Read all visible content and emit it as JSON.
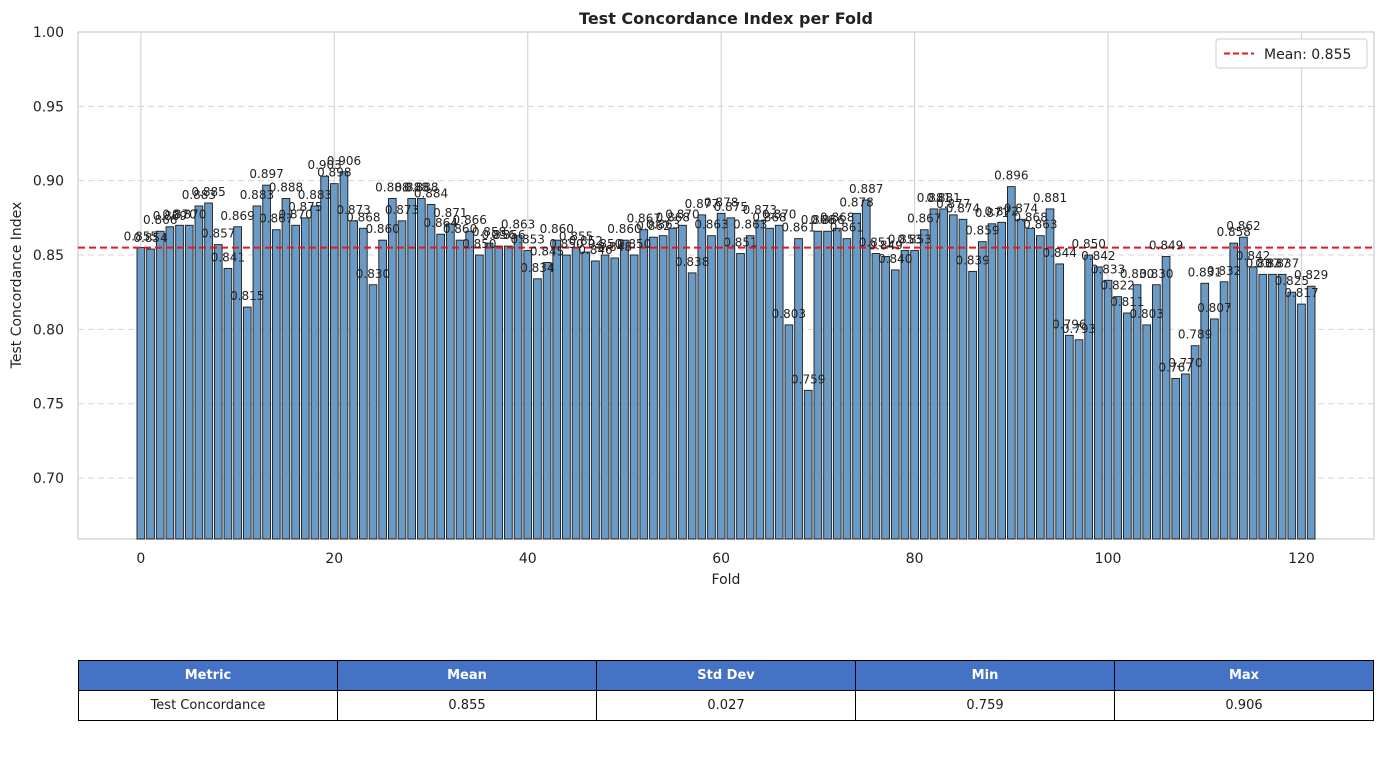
{
  "chart_data": {
    "type": "bar",
    "title": "Test Concordance Index per Fold",
    "xlabel": "Fold",
    "ylabel": "Test Concordance Index",
    "xlim": [
      -6.5,
      127.5
    ],
    "ylim": [
      0.659,
      1.0
    ],
    "x_ticks": [
      0,
      20,
      40,
      60,
      80,
      100,
      120
    ],
    "y_ticks": [
      0.7,
      0.75,
      0.8,
      0.85,
      0.9,
      0.95,
      1.0
    ],
    "grid": true,
    "bar_color": "#6a9bc7",
    "bar_edge_color": "#1a1a1a",
    "mean_line": {
      "value": 0.855,
      "color": "#e41a1c",
      "label": "Mean: 0.855"
    },
    "legend_position": "top-right",
    "x": [
      0,
      1,
      2,
      3,
      4,
      5,
      6,
      7,
      8,
      9,
      10,
      11,
      12,
      13,
      14,
      15,
      16,
      17,
      18,
      19,
      20,
      21,
      22,
      23,
      24,
      25,
      26,
      27,
      28,
      29,
      30,
      31,
      32,
      33,
      34,
      35,
      36,
      37,
      38,
      39,
      40,
      41,
      42,
      43,
      44,
      45,
      46,
      47,
      48,
      49,
      50,
      51,
      52,
      53,
      54,
      55,
      56,
      57,
      58,
      59,
      60,
      61,
      62,
      63,
      64,
      65,
      66,
      67,
      68,
      69,
      70,
      71,
      72,
      73,
      74,
      75,
      76,
      77,
      78,
      79,
      80,
      81,
      82,
      83,
      84,
      85,
      86,
      87,
      88,
      89,
      90,
      91,
      92,
      93,
      94,
      95,
      96,
      97,
      98,
      99,
      100,
      101,
      102,
      103,
      104,
      105,
      106,
      107,
      108,
      109,
      110,
      111,
      112,
      113,
      114,
      115,
      116,
      117,
      118,
      119,
      120,
      121
    ],
    "values": [
      0.855,
      0.854,
      0.866,
      0.869,
      0.87,
      0.87,
      0.883,
      0.885,
      0.857,
      0.841,
      0.869,
      0.815,
      0.883,
      0.897,
      0.867,
      0.888,
      0.87,
      0.875,
      0.883,
      0.903,
      0.898,
      0.906,
      0.873,
      0.868,
      0.83,
      0.86,
      0.888,
      0.873,
      0.888,
      0.888,
      0.884,
      0.864,
      0.871,
      0.86,
      0.866,
      0.85,
      0.858,
      0.856,
      0.856,
      0.863,
      0.853,
      0.834,
      0.845,
      0.86,
      0.85,
      0.855,
      0.852,
      0.846,
      0.85,
      0.848,
      0.86,
      0.85,
      0.867,
      0.862,
      0.863,
      0.868,
      0.87,
      0.838,
      0.877,
      0.863,
      0.878,
      0.875,
      0.851,
      0.863,
      0.873,
      0.868,
      0.87,
      0.803,
      0.861,
      0.759,
      0.866,
      0.866,
      0.868,
      0.861,
      0.878,
      0.887,
      0.851,
      0.849,
      0.84,
      0.853,
      0.853,
      0.867,
      0.881,
      0.881,
      0.877,
      0.874,
      0.839,
      0.859,
      0.871,
      0.872,
      0.896,
      0.874,
      0.868,
      0.863,
      0.881,
      0.844,
      0.796,
      0.793,
      0.85,
      0.842,
      0.833,
      0.822,
      0.811,
      0.83,
      0.803,
      0.83,
      0.849,
      0.767,
      0.77,
      0.789,
      0.831,
      0.807,
      0.832,
      0.858,
      0.862,
      0.842,
      0.837,
      0.837,
      0.837,
      0.825,
      0.817,
      0.829
    ],
    "data_labels": [
      "0.855",
      "0.854",
      "0.866",
      "0.869",
      "0.870",
      "0.870",
      "0.883",
      "0.885",
      "0.857",
      "0.841",
      "0.869",
      "0.815",
      "0.883",
      "0.897",
      "0.867",
      "0.888",
      "0.870",
      "0.875",
      "0.883",
      "0.903",
      "0.898",
      "0.906",
      "0.873",
      "0.868",
      "0.830",
      "0.860",
      "0.888",
      "0.873",
      "0.888",
      "0.888",
      "0.884",
      "0.864",
      "0.871",
      "0.860",
      "0.866",
      "0.850",
      "0.858",
      "0.856",
      "0.856",
      "0.863",
      "0.853",
      "0.834",
      "0.845",
      "0.860",
      "0.850",
      "0.855",
      "0.852",
      "0.846",
      "0.850",
      "0.848",
      "0.860",
      "0.850",
      "0.867",
      "0.862",
      "0.863",
      "0.868",
      "0.870",
      "0.838",
      "0.877",
      "0.863",
      "0.878",
      "0.875",
      "0.851",
      "0.863",
      "0.873",
      "0.868",
      "0.870",
      "0.803",
      "0.861",
      "0.759",
      "0.866",
      "0.866",
      "0.868",
      "0.861",
      "0.878",
      "0.887",
      "0.851",
      "0.849",
      "0.840",
      "0.853",
      "0.853",
      "0.867",
      "0.881",
      "0.881",
      "0.877",
      "0.874",
      "0.839",
      "0.859",
      "0.871",
      "0.872",
      "0.896",
      "0.874",
      "0.868",
      "0.863",
      "0.881",
      "0.844",
      "0.796",
      "0.793",
      "0.850",
      "0.842",
      "0.833",
      "0.822",
      "0.811",
      "0.830",
      "0.803",
      "0.830",
      "0.849",
      "0.767",
      "0.770",
      "0.789",
      "0.831",
      "0.807",
      "0.832",
      "0.858",
      "0.862",
      "0.842",
      "0.837",
      "0.837",
      "0.837",
      "0.825",
      "0.817",
      "0.829"
    ]
  },
  "summary_table": {
    "headers": [
      "Metric",
      "Mean",
      "Std Dev",
      "Min",
      "Max"
    ],
    "row": [
      "Test Concordance",
      "0.855",
      "0.027",
      "0.759",
      "0.906"
    ]
  }
}
